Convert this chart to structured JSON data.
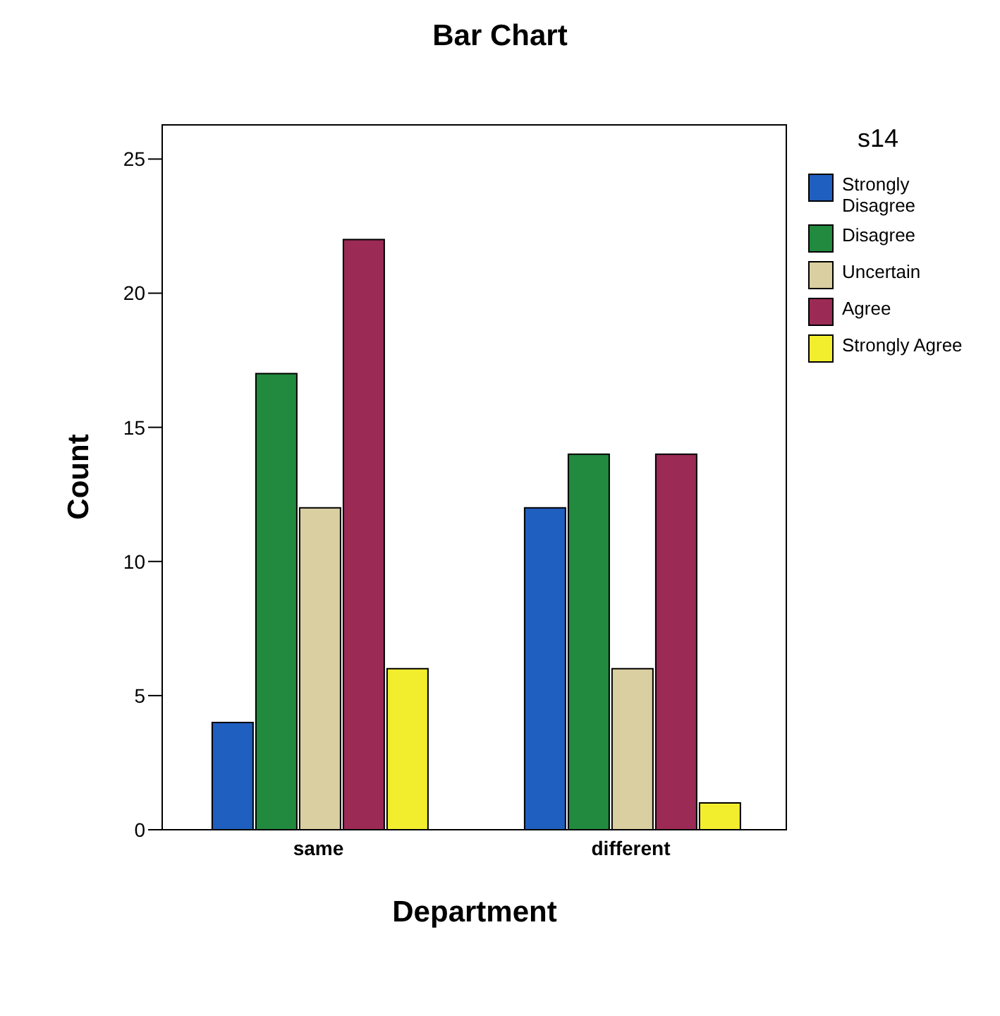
{
  "chart_data": {
    "type": "bar",
    "title": "Bar Chart",
    "xlabel": "Department",
    "ylabel": "Count",
    "legend_title": "s14",
    "categories": [
      "same",
      "different"
    ],
    "series": [
      {
        "name": "Strongly Disagree",
        "color": "#1f5fbf",
        "values": [
          4,
          12
        ]
      },
      {
        "name": "Disagree",
        "color": "#218a3e",
        "values": [
          17,
          14
        ]
      },
      {
        "name": "Uncertain",
        "color": "#d9cfa0",
        "values": [
          12,
          6
        ]
      },
      {
        "name": "Agree",
        "color": "#9b2a55",
        "values": [
          22,
          14
        ]
      },
      {
        "name": "Strongly Agree",
        "color": "#f2ee2e",
        "values": [
          6,
          1
        ]
      }
    ],
    "ylim": [
      0,
      26.3
    ],
    "yticks": [
      0,
      5,
      10,
      15,
      20,
      25
    ],
    "legend": "top right"
  }
}
